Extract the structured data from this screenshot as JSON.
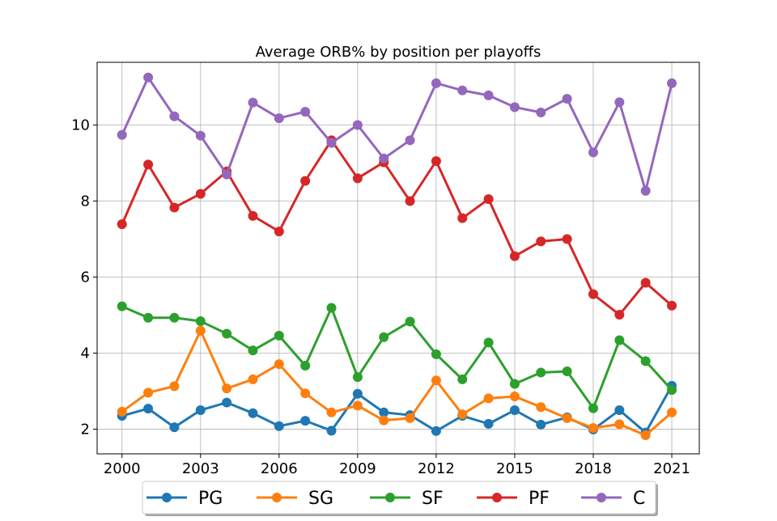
{
  "chart_data": {
    "type": "line",
    "title": "Average ORB% by position per playoffs",
    "xlabel": "",
    "ylabel": "",
    "x": [
      2000,
      2001,
      2002,
      2003,
      2004,
      2005,
      2006,
      2007,
      2008,
      2009,
      2010,
      2011,
      2012,
      2013,
      2014,
      2015,
      2016,
      2017,
      2018,
      2019,
      2020,
      2021
    ],
    "x_ticks": [
      2000,
      2003,
      2006,
      2009,
      2012,
      2015,
      2018,
      2021
    ],
    "y_ticks": [
      2,
      4,
      6,
      8,
      10
    ],
    "xlim": [
      1999.05,
      2022.05
    ],
    "ylim": [
      1.35,
      11.65
    ],
    "grid": true,
    "legend": "bottom-center",
    "series": [
      {
        "name": "PG",
        "color": "#1f77b4",
        "values": [
          2.35,
          2.54,
          2.05,
          2.5,
          2.7,
          2.42,
          2.08,
          2.22,
          1.96,
          2.93,
          2.44,
          2.37,
          1.95,
          2.35,
          2.14,
          2.5,
          2.12,
          2.31,
          1.99,
          2.5,
          1.91,
          3.14
        ]
      },
      {
        "name": "SG",
        "color": "#ff7f0e",
        "values": [
          2.46,
          2.96,
          3.13,
          4.59,
          3.07,
          3.31,
          3.71,
          2.94,
          2.44,
          2.62,
          2.23,
          2.29,
          3.28,
          2.39,
          2.81,
          2.86,
          2.58,
          2.29,
          2.03,
          2.13,
          1.84,
          2.44
        ]
      },
      {
        "name": "SF",
        "color": "#2ca02c",
        "values": [
          5.23,
          4.93,
          4.93,
          4.84,
          4.51,
          4.07,
          4.46,
          3.67,
          5.19,
          3.37,
          4.42,
          4.83,
          3.97,
          3.31,
          4.28,
          3.19,
          3.49,
          3.52,
          2.55,
          4.34,
          3.79,
          3.03
        ]
      },
      {
        "name": "PF",
        "color": "#d62728",
        "values": [
          7.39,
          8.96,
          7.83,
          8.19,
          8.78,
          7.61,
          7.2,
          8.53,
          9.6,
          8.6,
          9.02,
          8.0,
          9.05,
          7.55,
          8.05,
          6.55,
          6.94,
          7.0,
          5.55,
          5.01,
          5.85,
          5.25
        ]
      },
      {
        "name": "C",
        "color": "#9467bd",
        "values": [
          9.74,
          11.25,
          10.23,
          9.72,
          8.7,
          10.59,
          10.18,
          10.35,
          9.53,
          10.0,
          9.12,
          9.6,
          11.1,
          10.91,
          10.78,
          10.47,
          10.33,
          10.69,
          9.28,
          10.6,
          8.27,
          11.1
        ]
      }
    ]
  }
}
